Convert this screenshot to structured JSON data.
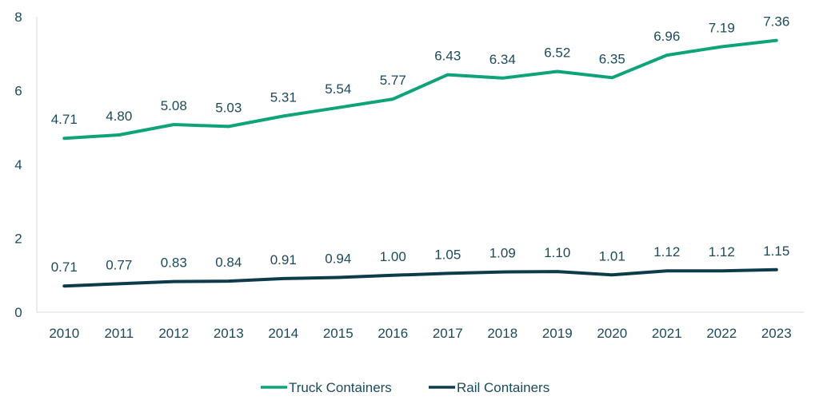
{
  "chart_data": {
    "type": "line",
    "title": "",
    "xlabel": "",
    "ylabel": "",
    "x": [
      "2010",
      "2011",
      "2012",
      "2013",
      "2014",
      "2015",
      "2016",
      "2017",
      "2018",
      "2019",
      "2020",
      "2021",
      "2022",
      "2023"
    ],
    "ylim": [
      0,
      8
    ],
    "yticks": [
      "0",
      "2",
      "4",
      "6",
      "8"
    ],
    "grid": false,
    "legend_position": "bottom-center",
    "series": [
      {
        "name": "Truck Containers",
        "color": "#0fa37a",
        "values": [
          4.71,
          4.8,
          5.08,
          5.03,
          5.31,
          5.54,
          5.77,
          6.43,
          6.34,
          6.52,
          6.35,
          6.96,
          7.19,
          7.36
        ],
        "labels": [
          "4.71",
          "4.80",
          "5.08",
          "5.03",
          "5.31",
          "5.54",
          "5.77",
          "6.43",
          "6.34",
          "6.52",
          "6.35",
          "6.96",
          "7.19",
          "7.36"
        ]
      },
      {
        "name": "Rail Containers",
        "color": "#0d3b4a",
        "values": [
          0.71,
          0.77,
          0.83,
          0.84,
          0.91,
          0.94,
          1.0,
          1.05,
          1.09,
          1.1,
          1.01,
          1.12,
          1.12,
          1.15
        ],
        "labels": [
          "0.71",
          "0.77",
          "0.83",
          "0.84",
          "0.91",
          "0.94",
          "1.00",
          "1.05",
          "1.09",
          "1.10",
          "1.01",
          "1.12",
          "1.12",
          "1.15"
        ]
      }
    ]
  }
}
